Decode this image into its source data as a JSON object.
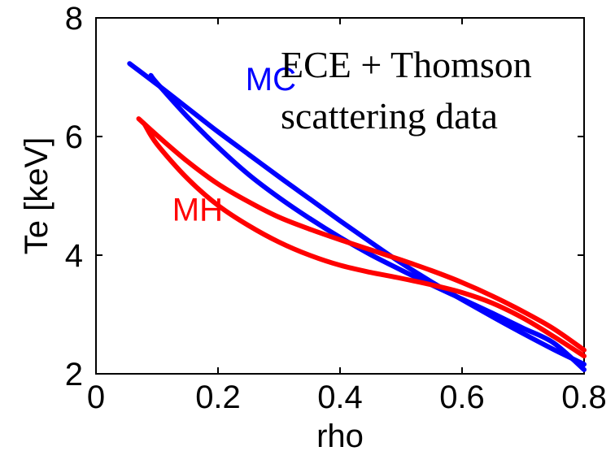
{
  "chart_data": {
    "type": "line",
    "xlabel": "rho",
    "ylabel": "Te [keV]",
    "xlim": [
      0,
      0.8
    ],
    "ylim": [
      2,
      8
    ],
    "xticks": [
      "0",
      "0.2",
      "0.4",
      "0.6",
      "0.8"
    ],
    "yticks": [
      "2",
      "4",
      "6",
      "8"
    ],
    "grid": false,
    "annotation": [
      "ECE + Thomson",
      "scattering data"
    ],
    "series": [
      {
        "name": "MC",
        "color": "#0000ff",
        "x": [
          0.055,
          0.1,
          0.15,
          0.2,
          0.25,
          0.3,
          0.35,
          0.4,
          0.45,
          0.5,
          0.55,
          0.6,
          0.65,
          0.7,
          0.75,
          0.8
        ],
        "y": [
          7.23,
          6.88,
          6.48,
          6.08,
          5.7,
          5.32,
          4.95,
          4.58,
          4.22,
          3.87,
          3.55,
          3.25,
          2.96,
          2.68,
          2.41,
          2.16
        ]
      },
      {
        "name": "",
        "color": "#0000ff",
        "x": [
          0.09,
          0.1,
          0.15,
          0.2,
          0.25,
          0.3,
          0.35,
          0.4,
          0.45,
          0.5,
          0.55,
          0.6,
          0.65,
          0.7,
          0.75,
          0.8
        ],
        "y": [
          7.03,
          6.9,
          6.33,
          5.82,
          5.36,
          4.97,
          4.62,
          4.3,
          4.01,
          3.75,
          3.5,
          3.26,
          3.02,
          2.77,
          2.52,
          2.07
        ]
      },
      {
        "name": "MH",
        "color": "#ff0000",
        "x": [
          0.07,
          0.1,
          0.15,
          0.2,
          0.25,
          0.3,
          0.35,
          0.4,
          0.45,
          0.5,
          0.55,
          0.6,
          0.65,
          0.7,
          0.75,
          0.8
        ],
        "y": [
          6.3,
          6.02,
          5.58,
          5.2,
          4.9,
          4.64,
          4.44,
          4.26,
          4.09,
          3.92,
          3.74,
          3.54,
          3.31,
          3.05,
          2.76,
          2.4
        ]
      },
      {
        "name": "",
        "color": "#ff0000",
        "x": [
          0.08,
          0.1,
          0.15,
          0.2,
          0.25,
          0.3,
          0.35,
          0.4,
          0.45,
          0.5,
          0.55,
          0.6,
          0.65,
          0.7,
          0.75,
          0.8
        ],
        "y": [
          6.2,
          5.87,
          5.29,
          4.84,
          4.5,
          4.22,
          4.0,
          3.83,
          3.71,
          3.61,
          3.5,
          3.37,
          3.19,
          2.94,
          2.63,
          2.3
        ]
      }
    ]
  }
}
